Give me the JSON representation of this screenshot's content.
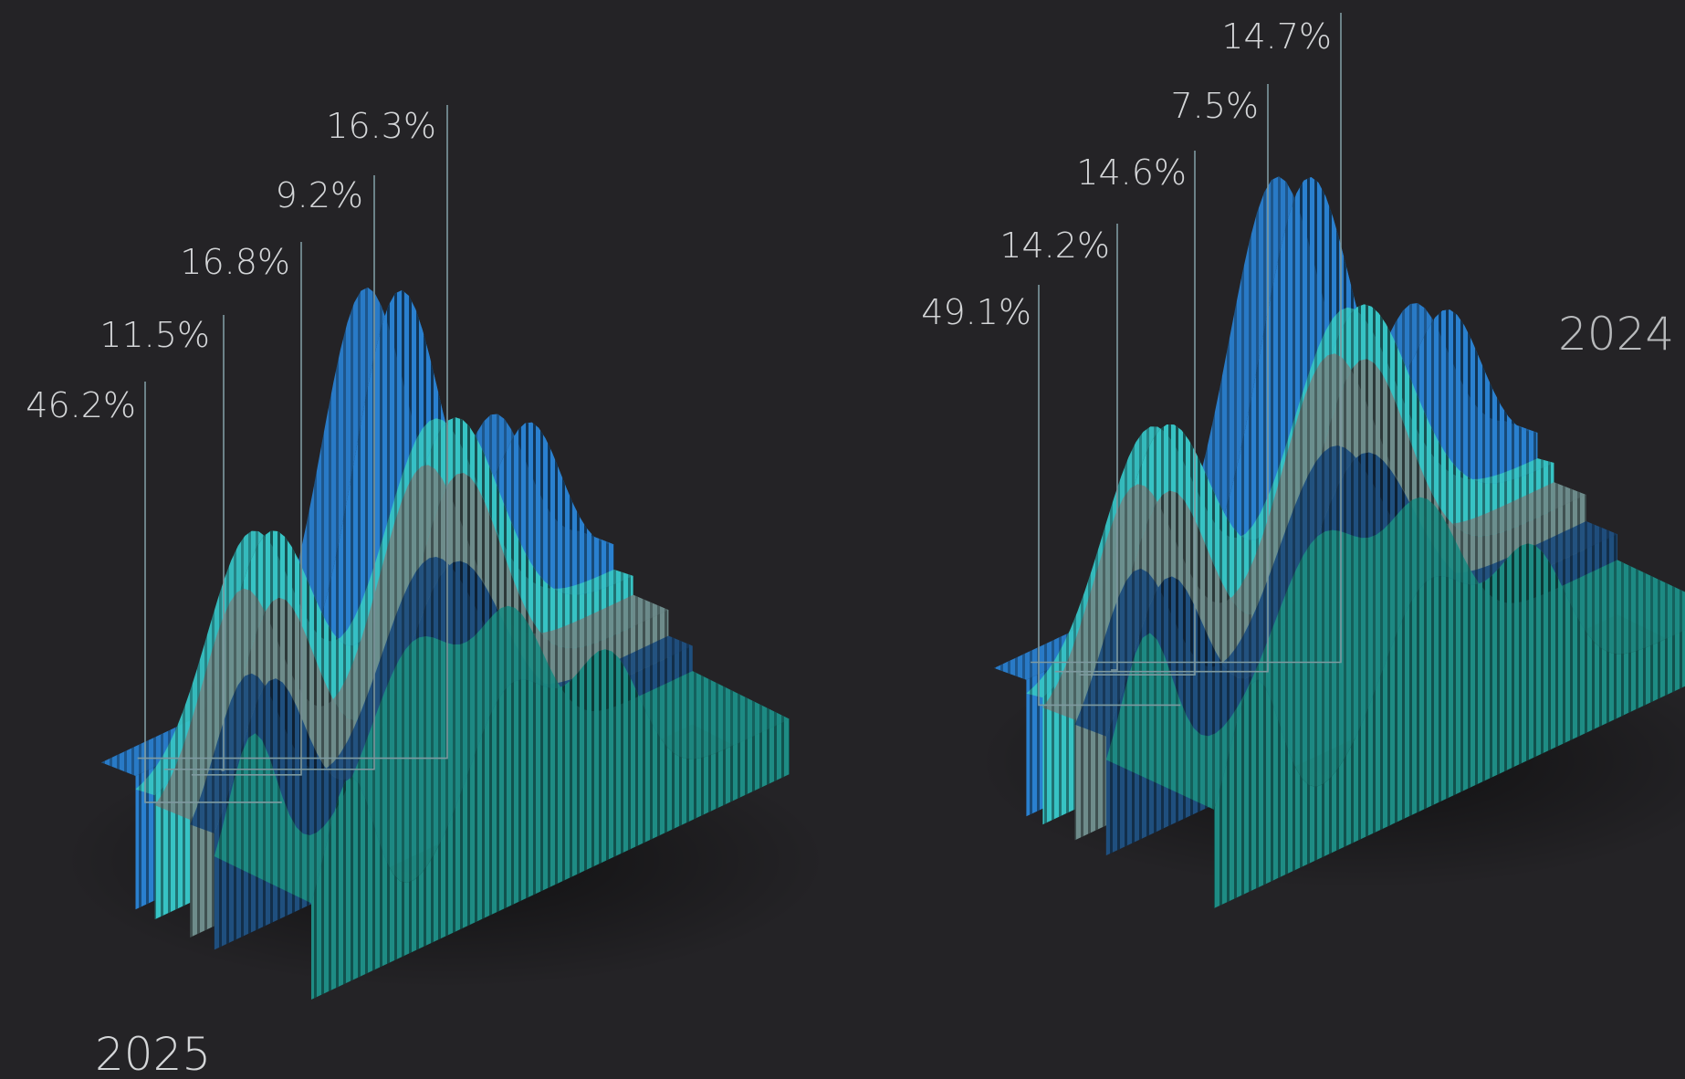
{
  "chart_data": [
    {
      "type": "ridge",
      "title": "2025",
      "values": [
        46.2,
        11.5,
        16.8,
        9.2,
        16.3
      ],
      "value_labels": [
        "46.2%",
        "11.5%",
        "16.8%",
        "9.2%",
        "16.3%"
      ]
    },
    {
      "type": "ridge",
      "title": "2024",
      "values": [
        49.1,
        14.2,
        14.6,
        7.5,
        14.7
      ],
      "value_labels": [
        "49.1%",
        "14.2%",
        "14.6%",
        "7.5%",
        "14.7%"
      ]
    }
  ]
}
